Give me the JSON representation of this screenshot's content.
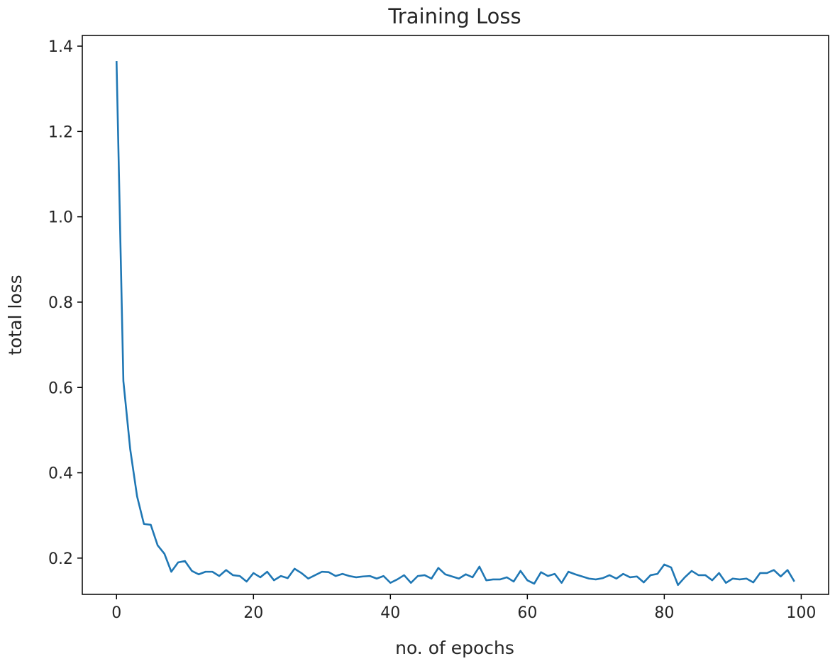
{
  "chart_data": {
    "type": "line",
    "title": "Training Loss",
    "xlabel": "no. of epochs",
    "ylabel": "total loss",
    "xlim": [
      -5,
      104
    ],
    "ylim": [
      0.115,
      1.425
    ],
    "xticks": [
      0,
      20,
      40,
      60,
      80,
      100
    ],
    "yticks": [
      0.2,
      0.4,
      0.6,
      0.8,
      1.0,
      1.2,
      1.4
    ],
    "ytick_labels": [
      "0.2",
      "0.4",
      "0.6",
      "0.8",
      "1.0",
      "1.2",
      "1.4"
    ],
    "grid": false,
    "legend": "none",
    "series": [
      {
        "color": "#1f77b4",
        "x": [
          0,
          1,
          2,
          3,
          4,
          5,
          6,
          7,
          8,
          9,
          10,
          11,
          12,
          13,
          14,
          15,
          16,
          17,
          18,
          19,
          20,
          21,
          22,
          23,
          24,
          25,
          26,
          27,
          28,
          29,
          30,
          31,
          32,
          33,
          34,
          35,
          36,
          37,
          38,
          39,
          40,
          41,
          42,
          43,
          44,
          45,
          46,
          47,
          48,
          49,
          50,
          51,
          52,
          53,
          54,
          55,
          56,
          57,
          58,
          59,
          60,
          61,
          62,
          63,
          64,
          65,
          66,
          67,
          68,
          69,
          70,
          71,
          72,
          73,
          74,
          75,
          76,
          77,
          78,
          79,
          80,
          81,
          82,
          83,
          84,
          85,
          86,
          87,
          88,
          89,
          90,
          91,
          92,
          93,
          94,
          95,
          96,
          97,
          98,
          99
        ],
        "y": [
          1.365,
          0.615,
          0.455,
          0.345,
          0.28,
          0.278,
          0.23,
          0.21,
          0.168,
          0.19,
          0.193,
          0.17,
          0.162,
          0.168,
          0.168,
          0.158,
          0.172,
          0.16,
          0.158,
          0.145,
          0.165,
          0.155,
          0.168,
          0.148,
          0.158,
          0.153,
          0.175,
          0.165,
          0.152,
          0.16,
          0.168,
          0.167,
          0.158,
          0.163,
          0.158,
          0.155,
          0.157,
          0.158,
          0.152,
          0.158,
          0.142,
          0.15,
          0.16,
          0.142,
          0.158,
          0.16,
          0.152,
          0.177,
          0.162,
          0.157,
          0.152,
          0.162,
          0.155,
          0.18,
          0.148,
          0.15,
          0.15,
          0.155,
          0.145,
          0.17,
          0.148,
          0.14,
          0.167,
          0.158,
          0.163,
          0.142,
          0.168,
          0.162,
          0.157,
          0.152,
          0.15,
          0.153,
          0.16,
          0.152,
          0.163,
          0.155,
          0.157,
          0.143,
          0.16,
          0.163,
          0.185,
          0.178,
          0.137,
          0.155,
          0.17,
          0.16,
          0.16,
          0.148,
          0.165,
          0.142,
          0.152,
          0.15,
          0.152,
          0.143,
          0.165,
          0.165,
          0.172,
          0.157,
          0.172,
          0.145
        ]
      }
    ]
  }
}
